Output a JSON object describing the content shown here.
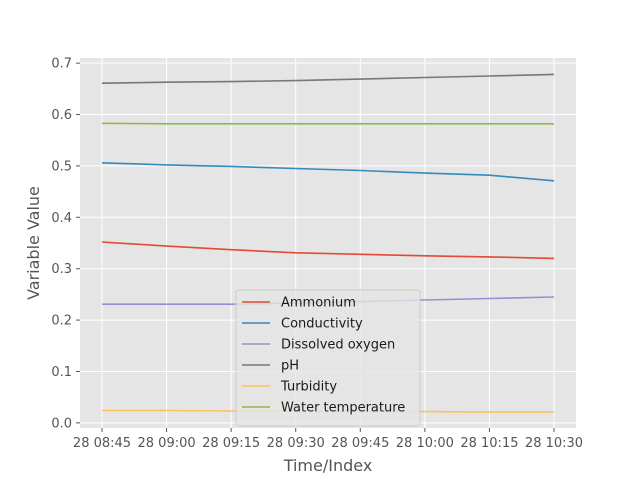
{
  "chart_data": {
    "type": "line",
    "xlabel": "Time/Index",
    "ylabel": "Variable Value",
    "x": [
      "28 08:45",
      "28 09:00",
      "28 09:15",
      "28 09:30",
      "28 09:45",
      "28 10:00",
      "28 10:15",
      "28 10:30"
    ],
    "xticks": [
      "28 08:45",
      "28 09:00",
      "28 09:15",
      "28 09:30",
      "28 09:45",
      "28 10:00",
      "28 10:15",
      "28 10:30"
    ],
    "yticks": [
      "0.0",
      "0.1",
      "0.2",
      "0.3",
      "0.4",
      "0.5",
      "0.6",
      "0.7"
    ],
    "ylim": [
      -0.01,
      0.71
    ],
    "grid": true,
    "legend_position": "bottom-center",
    "background": "#e5e5e5",
    "series": [
      {
        "name": "Ammonium",
        "color": "#e24a33",
        "values": [
          0.352,
          0.344,
          0.337,
          0.331,
          0.328,
          0.325,
          0.323,
          0.32
        ]
      },
      {
        "name": "Conductivity",
        "color": "#348abd",
        "values": [
          0.506,
          0.502,
          0.499,
          0.495,
          0.491,
          0.486,
          0.482,
          0.471
        ]
      },
      {
        "name": "Dissolved oxygen",
        "color": "#988ed5",
        "values": [
          0.231,
          0.231,
          0.231,
          0.233,
          0.236,
          0.239,
          0.242,
          0.245
        ]
      },
      {
        "name": "pH",
        "color": "#777777",
        "values": [
          0.661,
          0.663,
          0.664,
          0.666,
          0.669,
          0.672,
          0.675,
          0.678
        ]
      },
      {
        "name": "Turbidity",
        "color": "#fbc15e",
        "values": [
          0.024,
          0.024,
          0.023,
          0.023,
          0.022,
          0.022,
          0.021,
          0.021
        ]
      },
      {
        "name": "Water temperature",
        "color": "#8eba42",
        "values": [
          0.583,
          0.582,
          0.582,
          0.582,
          0.582,
          0.582,
          0.582,
          0.582
        ]
      }
    ]
  }
}
